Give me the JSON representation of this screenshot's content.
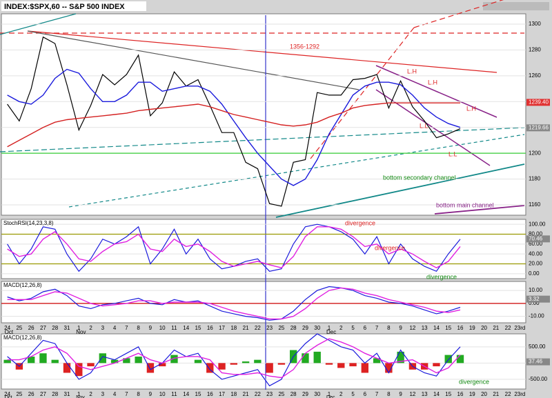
{
  "chart_data": [
    {
      "type": "line",
      "title": "INDEX:$SPX,60 -- S&P 500 INDEX",
      "categories": [
        "24",
        "25",
        "26",
        "27",
        "28",
        "31",
        "1",
        "2",
        "3",
        "4",
        "7",
        "8",
        "9",
        "10",
        "11",
        "14",
        "15",
        "16",
        "17",
        "18",
        "21",
        "22",
        "23",
        "25",
        "28",
        "29",
        "30",
        "1",
        "2",
        "5",
        "6",
        "7",
        "8",
        "9",
        "12",
        "13",
        "14",
        "15",
        "16",
        "19",
        "20",
        "21",
        "22",
        "23rd"
      ],
      "months": [
        "Oct",
        "Nov",
        "Dec"
      ],
      "ylim": [
        1152,
        1308
      ],
      "yticks": [
        1160,
        1180,
        1200,
        1220,
        1240,
        1260,
        1280,
        1300
      ],
      "series": [
        {
          "color": "#000000",
          "values": [
            1238,
            1225,
            1250,
            1290,
            1285,
            1253,
            1218,
            1237,
            1261,
            1253,
            1261,
            1276,
            1229,
            1239,
            1263,
            1252,
            1257,
            1237,
            1216,
            1216,
            1193,
            1188,
            1161,
            1159,
            1193,
            1195,
            1247,
            1245,
            1245,
            1257,
            1258,
            1261,
            1235,
            1256,
            1236,
            1225,
            1212,
            1215,
            1219,
            null,
            null,
            null,
            null,
            null
          ]
        },
        {
          "color": "#1a1adc",
          "values": [
            1245,
            1240,
            1238,
            1245,
            1258,
            1265,
            1262,
            1250,
            1240,
            1240,
            1245,
            1255,
            1255,
            1248,
            1250,
            1252,
            1252,
            1248,
            1238,
            1225,
            1212,
            1200,
            1190,
            1180,
            1175,
            1180,
            1195,
            1215,
            1230,
            1245,
            1252,
            1255,
            1255,
            1253,
            1245,
            1235,
            1228,
            1223,
            1220,
            null,
            null,
            null,
            null,
            null
          ]
        },
        {
          "color": "#d42020",
          "values": [
            1205,
            1210,
            1215,
            1220,
            1224,
            1226,
            1227,
            1228,
            1229,
            1230,
            1231,
            1233,
            1234,
            1235,
            1236,
            1237,
            1238,
            1236,
            1233,
            1230,
            1228,
            1226,
            1224,
            1222,
            1221,
            1222,
            1224,
            1228,
            1231,
            1235,
            1237,
            1238,
            1239,
            1239,
            1239,
            1239,
            1239,
            1239,
            1239,
            null,
            null,
            null,
            null,
            null
          ]
        }
      ],
      "levels": [
        {
          "value": 1200,
          "color": "#33cc33"
        }
      ],
      "last_labels": [
        {
          "value": 1239.4,
          "label": "1239.40",
          "color": "#e03030"
        },
        {
          "value": 1219.66,
          "label": "1219.66",
          "color": "#888888"
        }
      ],
      "annotations": [
        "1356-1292",
        "bottom secondary channel",
        "bottom main channel",
        "L.H",
        "L.H",
        "L.H",
        "L.L",
        "L.L"
      ]
    },
    {
      "type": "line",
      "title": "StochRSI(14,23,3,8)",
      "ylim": [
        -10,
        110
      ],
      "yticks": [
        {
          "value": 0,
          "label": "0.00"
        },
        {
          "value": 20,
          "label": "20.00"
        },
        {
          "value": 40,
          "label": "40.00"
        },
        {
          "value": 60,
          "label": "60.00"
        },
        {
          "value": 80,
          "label": "80.00"
        },
        {
          "value": 100,
          "label": "100.00"
        }
      ],
      "series": [
        {
          "color": "#1a1adc",
          "values": [
            60,
            20,
            50,
            95,
            90,
            40,
            5,
            30,
            70,
            60,
            75,
            95,
            20,
            50,
            90,
            40,
            70,
            30,
            10,
            15,
            25,
            30,
            5,
            10,
            60,
            95,
            100,
            95,
            85,
            70,
            40,
            75,
            20,
            60,
            30,
            15,
            5,
            40,
            70,
            null,
            null,
            null,
            null,
            null
          ]
        },
        {
          "color": "#e020e0",
          "values": [
            50,
            35,
            40,
            70,
            85,
            60,
            30,
            25,
            45,
            60,
            65,
            80,
            50,
            45,
            70,
            55,
            60,
            45,
            25,
            15,
            20,
            25,
            18,
            12,
            35,
            75,
            95,
            95,
            90,
            75,
            55,
            60,
            40,
            50,
            40,
            25,
            12,
            25,
            55,
            null,
            null,
            null,
            null,
            null
          ]
        }
      ],
      "levels": [
        {
          "value": 80,
          "color": "#999900"
        },
        {
          "value": 20,
          "color": "#999900"
        }
      ],
      "last_labels": [
        {
          "value": 70.46,
          "label": "70.46",
          "color": "#888888"
        }
      ],
      "annotations": [
        "divergence",
        "divergence",
        "divergence"
      ]
    },
    {
      "type": "line",
      "title": "MACD(12,26,8)",
      "ylim": [
        -15,
        17
      ],
      "yticks": [
        {
          "value": -10,
          "label": "-10.00"
        },
        {
          "value": 0,
          "label": "0.00"
        },
        {
          "value": 10,
          "label": "10.00"
        }
      ],
      "series": [
        {
          "color": "#1a1adc",
          "values": [
            5,
            2,
            4,
            9,
            11,
            6,
            -2,
            -4,
            -1,
            0,
            2,
            4,
            0,
            -1,
            3,
            1,
            2,
            -2,
            -6,
            -8,
            -10,
            -11,
            -13,
            -12,
            -6,
            3,
            10,
            13,
            12,
            10,
            6,
            4,
            1,
            0,
            -2,
            -5,
            -8,
            -6,
            -3,
            null,
            null,
            null,
            null,
            null
          ]
        },
        {
          "color": "#e020e0",
          "values": [
            3,
            3,
            3,
            6,
            9,
            8,
            4,
            0,
            -2,
            -1,
            0,
            2,
            2,
            0,
            1,
            1,
            1,
            0,
            -3,
            -6,
            -8,
            -10,
            -12,
            -12,
            -10,
            -4,
            4,
            10,
            12,
            11,
            8,
            6,
            3,
            1,
            -1,
            -3,
            -6,
            -7,
            -5,
            null,
            null,
            null,
            null,
            null
          ]
        }
      ],
      "levels": [
        {
          "value": 0,
          "color": "#cc0000"
        }
      ],
      "last_labels": [
        {
          "value": 3.32,
          "label": "3.32",
          "color": "#888888"
        }
      ]
    },
    {
      "type": "line",
      "title": "MACD(12,26,8)",
      "ylim": [
        -800,
        900
      ],
      "yticks": [
        {
          "value": -500,
          "label": "-500.00"
        },
        {
          "value": 0,
          "label": "0.00"
        },
        {
          "value": 500,
          "label": "500.00"
        }
      ],
      "series": [
        {
          "color": "#1a1adc",
          "values": [
            200,
            -100,
            300,
            700,
            600,
            0,
            -500,
            -300,
            200,
            100,
            300,
            500,
            -200,
            0,
            400,
            200,
            300,
            -200,
            -500,
            -400,
            -300,
            -200,
            -700,
            -500,
            200,
            600,
            900,
            700,
            500,
            400,
            0,
            300,
            -300,
            400,
            -100,
            -300,
            -400,
            100,
            500,
            null,
            null,
            null,
            null,
            null
          ]
        },
        {
          "color": "#e020e0",
          "values": [
            100,
            100,
            200,
            400,
            500,
            300,
            -100,
            -200,
            -100,
            0,
            150,
            300,
            100,
            0,
            150,
            200,
            200,
            100,
            -300,
            -350,
            -350,
            -300,
            -400,
            -450,
            -200,
            300,
            550,
            750,
            650,
            500,
            300,
            150,
            0,
            50,
            100,
            -100,
            -300,
            -150,
            250,
            null,
            null,
            null,
            null,
            null
          ]
        }
      ],
      "histogram": [
        100,
        -200,
        200,
        300,
        100,
        -300,
        -400,
        -100,
        300,
        100,
        150,
        200,
        -300,
        -100,
        250,
        0,
        100,
        -300,
        -200,
        -50,
        50,
        100,
        -300,
        -50,
        400,
        300,
        350,
        -50,
        -150,
        -100,
        -300,
        150,
        -300,
        350,
        -200,
        -200,
        -100,
        250,
        250,
        null,
        null,
        null,
        null,
        null
      ],
      "up_color": "#22aa22",
      "down_color": "#dd2222",
      "last_labels": [
        {
          "value": 37.46,
          "label": "37.46",
          "color": "#888888"
        }
      ],
      "annotations": [
        "divergence"
      ]
    }
  ]
}
